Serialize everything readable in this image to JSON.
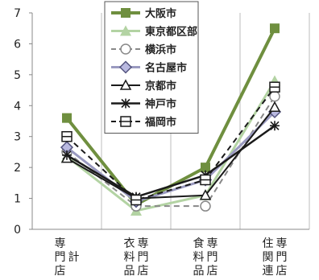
{
  "chart_data": {
    "type": "line",
    "categories": [
      [
        "計",
        "専門店"
      ],
      [
        "専門店",
        "衣料品"
      ],
      [
        "専門店",
        "食料品"
      ],
      [
        "専門店",
        "住関連"
      ]
    ],
    "ylim": [
      0,
      7
    ],
    "yticks": [
      "0",
      "1",
      "2",
      "3",
      "4",
      "5",
      "6",
      "7"
    ],
    "grid": "vertical-category-lines",
    "legend": "top-center",
    "series": [
      {
        "name": "大阪市",
        "values": [
          3.6,
          0.8,
          2.0,
          6.5
        ],
        "color": "#6f8f3f",
        "dash": "solid",
        "marker": "filled-square",
        "width": 4
      },
      {
        "name": "東京都区部",
        "values": [
          2.35,
          0.6,
          1.1,
          4.8
        ],
        "color": "#b3d3a3",
        "dash": "solid",
        "marker": "filled-triangle",
        "width": 3
      },
      {
        "name": "横浜市",
        "values": [
          2.5,
          0.75,
          0.75,
          4.3
        ],
        "color": "#888888",
        "dash": "dash",
        "marker": "open-circle",
        "width": 2
      },
      {
        "name": "名古屋市",
        "values": [
          2.65,
          0.9,
          1.6,
          3.8
        ],
        "color": "#9a9ac0",
        "dash": "solid",
        "marker": "open-diamond",
        "width": 3
      },
      {
        "name": "京都市",
        "values": [
          2.3,
          1.0,
          1.1,
          3.95
        ],
        "color": "#1a1a1a",
        "dash": "solid",
        "marker": "open-triangle",
        "width": 2
      },
      {
        "name": "神戸市",
        "values": [
          2.4,
          1.05,
          1.75,
          3.35
        ],
        "color": "#1a1a1a",
        "dash": "solid",
        "marker": "asterisk",
        "width": 2.5
      },
      {
        "name": "福岡市",
        "values": [
          3.0,
          0.95,
          1.6,
          4.6
        ],
        "color": "#1a1a1a",
        "dash": "dash",
        "marker": "open-square-bar",
        "width": 2
      }
    ]
  }
}
